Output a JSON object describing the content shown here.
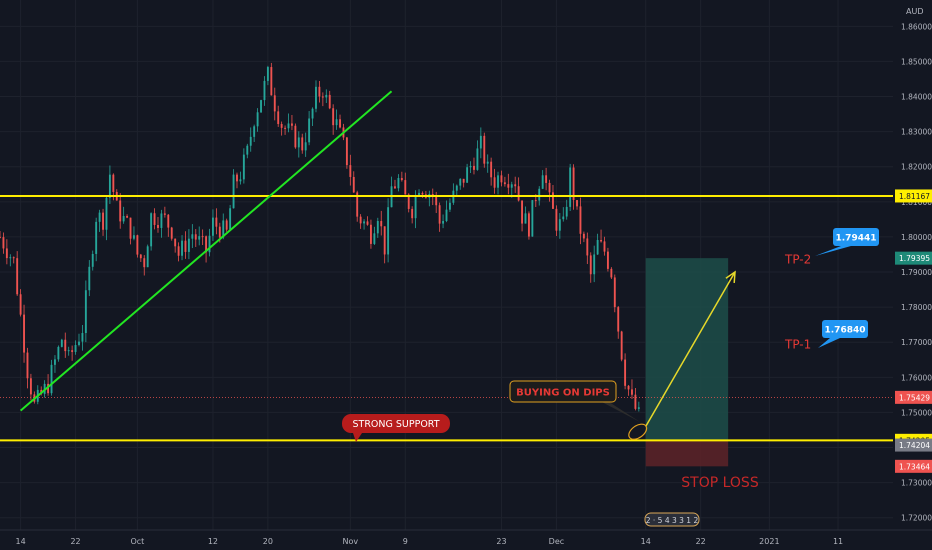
{
  "chart_data": {
    "type": "candlestick",
    "currency_label": "AUD",
    "y_ticks": [
      1.86,
      1.85,
      1.84,
      1.83,
      1.82,
      1.81,
      1.8,
      1.79,
      1.78,
      1.77,
      1.76,
      1.75,
      1.74,
      1.73,
      1.72
    ],
    "y_tick_labels": [
      "1.86000",
      "1.85000",
      "1.84000",
      "1.83000",
      "1.82000",
      "1.81000",
      "1.80000",
      "1.79000",
      "1.78000",
      "1.77000",
      "1.76000",
      "1.75000",
      "1.74000",
      "1.73000",
      "1.72000"
    ],
    "ylim": [
      1.7165,
      1.8675
    ],
    "x_ticks": [
      {
        "label": "14",
        "day": 0
      },
      {
        "label": "22",
        "day": 8
      },
      {
        "label": "Oct",
        "day": 17
      },
      {
        "label": "12",
        "day": 28
      },
      {
        "label": "20",
        "day": 36
      },
      {
        "label": "Nov",
        "day": 48
      },
      {
        "label": "9",
        "day": 56
      },
      {
        "label": "23",
        "day": 70
      },
      {
        "label": "Dec",
        "day": 78
      },
      {
        "label": "14",
        "day": 91
      },
      {
        "label": "22",
        "day": 99
      },
      {
        "label": "2021",
        "day": 109
      },
      {
        "label": "11",
        "day": 119
      }
    ],
    "xlim_days": [
      -3,
      127
    ],
    "price_path": [
      [
        -3,
        1.8
      ],
      [
        -1,
        1.793
      ],
      [
        1,
        1.762
      ],
      [
        2,
        1.752
      ],
      [
        4,
        1.758
      ],
      [
        6,
        1.771
      ],
      [
        7,
        1.765
      ],
      [
        9,
        1.774
      ],
      [
        10,
        1.79
      ],
      [
        11,
        1.806
      ],
      [
        12,
        1.805
      ],
      [
        13,
        1.818
      ],
      [
        14,
        1.808
      ],
      [
        16,
        1.802
      ],
      [
        17,
        1.795
      ],
      [
        18,
        1.793
      ],
      [
        19,
        1.806
      ],
      [
        21,
        1.805
      ],
      [
        22,
        1.802
      ],
      [
        23,
        1.795
      ],
      [
        25,
        1.801
      ],
      [
        27,
        1.796
      ],
      [
        28,
        1.804
      ],
      [
        30,
        1.801
      ],
      [
        31,
        1.815
      ],
      [
        32,
        1.818
      ],
      [
        33,
        1.824
      ],
      [
        34,
        1.834
      ],
      [
        35,
        1.84
      ],
      [
        36,
        1.846
      ],
      [
        37,
        1.838
      ],
      [
        38,
        1.832
      ],
      [
        39,
        1.83
      ],
      [
        40,
        1.828
      ],
      [
        41,
        1.826
      ],
      [
        42,
        1.832
      ],
      [
        43,
        1.84
      ],
      [
        44,
        1.842
      ],
      [
        45,
        1.836
      ],
      [
        46,
        1.832
      ],
      [
        47,
        1.826
      ],
      [
        48,
        1.818
      ],
      [
        49,
        1.806
      ],
      [
        50,
        1.804
      ],
      [
        51,
        1.801
      ],
      [
        52,
        1.807
      ],
      [
        53,
        1.797
      ],
      [
        54,
        1.814
      ],
      [
        55,
        1.816
      ],
      [
        56,
        1.811
      ],
      [
        57,
        1.808
      ],
      [
        58,
        1.815
      ],
      [
        60,
        1.812
      ],
      [
        61,
        1.804
      ],
      [
        62,
        1.808
      ],
      [
        64,
        1.815
      ],
      [
        66,
        1.822
      ],
      [
        67,
        1.826
      ],
      [
        68,
        1.819
      ],
      [
        69,
        1.816
      ],
      [
        70,
        1.818
      ],
      [
        72,
        1.816
      ],
      [
        73,
        1.806
      ],
      [
        74,
        1.803
      ],
      [
        75,
        1.812
      ],
      [
        76,
        1.82
      ],
      [
        77,
        1.81
      ],
      [
        78,
        1.804
      ],
      [
        79,
        1.803
      ],
      [
        80,
        1.818
      ],
      [
        81,
        1.806
      ],
      [
        82,
        1.798
      ],
      [
        83,
        1.789
      ],
      [
        84,
        1.798
      ],
      [
        85,
        1.796
      ],
      [
        86,
        1.79
      ],
      [
        87,
        1.774
      ],
      [
        88,
        1.76
      ],
      [
        89,
        1.753
      ],
      [
        90,
        1.749
      ]
    ],
    "horizontal_lines": [
      {
        "price": 1.81167,
        "color": "#ffee00"
      },
      {
        "price": 1.74205,
        "color": "#ffee00"
      }
    ],
    "trendlines": [
      {
        "from": [
          0,
          1.7505
        ],
        "to": [
          54,
          1.8415
        ],
        "color": "#22e622"
      }
    ],
    "position": {
      "entry": 1.74205,
      "target": 1.79395,
      "stop": 1.73464,
      "start_day": 91,
      "end_day": 103,
      "profit_color": "#1d4d49",
      "loss_color": "#5a2228"
    },
    "arrow": {
      "from": [
        91,
        1.746
      ],
      "to": [
        104,
        1.79
      ],
      "color": "#e6d82a"
    },
    "axis_price_labels": [
      {
        "text": "1.81167",
        "price": 1.81167,
        "bg": "#ffee00",
        "fg": "#131722"
      },
      {
        "text": "1.79395",
        "price": 1.79395,
        "bg": "#1e8a78",
        "fg": "#ffffff"
      },
      {
        "text": "1.75429",
        "price": 1.75429,
        "bg": "#ef5350",
        "fg": "#ffffff"
      },
      {
        "text": "1.74205",
        "price": 1.74205,
        "bg": "#ffee00",
        "fg": "#131722"
      },
      {
        "text": "1.74204",
        "price": 1.7407,
        "bg": "#787b86",
        "fg": "#ffffff"
      },
      {
        "text": "1.73464",
        "price": 1.73464,
        "bg": "#ef5350",
        "fg": "#ffffff"
      }
    ],
    "last_price_line": 1.75429,
    "annotations": {
      "tp2_label": "TP-2",
      "tp1_label": "TP-1",
      "tp2_price": "1.79441",
      "tp1_price": "1.76840",
      "strong_support": "STRONG SUPPORT",
      "buying_on_dips": "BUYING ON DIPS",
      "stop_loss": "STOP LOSS",
      "event_markers": "2 · 5 4 3 3 1 2"
    },
    "colors": {
      "up": "#26a69a",
      "down": "#ef5350",
      "background": "#131722",
      "grid": "#1e222d",
      "axis_text": "#b2b5be"
    }
  }
}
